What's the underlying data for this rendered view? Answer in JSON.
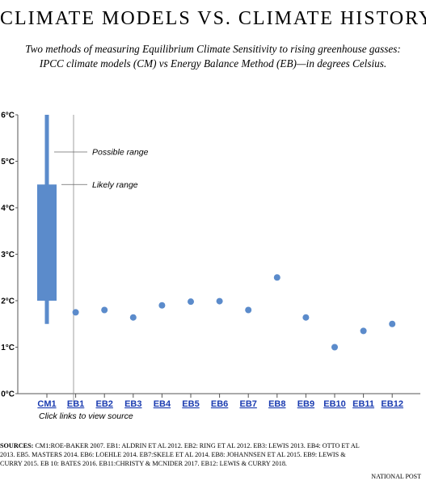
{
  "title": "CLIMATE MODELS VS. CLIMATE HISTORY",
  "subtitle_line1": "Two methods of measuring Equilibrium Climate Sensitivity to rising greenhouse gasses:",
  "subtitle_line2": "IPCC climate models (CM) vs Energy Balance Method (EB)—in degrees Celsius.",
  "note": "Click links to view source",
  "sources_label": "SOURCES:",
  "sources_line1": " CM1:ROE-BAKER 2007. EB1: ALDRIN ET AL 2012. EB2: RING ET AL 2012. EB3: LEWIS 2013. EB4: OTTO ET AL",
  "sources_line2": "2013. EB5. MASTERS 2014. EB6: LOEHLE 2014. EB7:SKELE ET AL 2014. EB8: JOHANNSEN ET AL 2015. EB9: LEWIS &",
  "sources_line3": "CURRY 2015. EB 10: BATES 2016. EB11:CHRISTY & MCNIDER 2017. EB12: LEWIS & CURRY 2018.",
  "credit": "NATIONAL POST",
  "colors": {
    "mark": "#5b8bcb",
    "link": "#1a3bb0",
    "axis": "#888888"
  },
  "chart_data": {
    "type": "scatter",
    "categories": [
      "CM1",
      "EB1",
      "EB2",
      "EB3",
      "EB4",
      "EB5",
      "EB6",
      "EB7",
      "EB8",
      "EB9",
      "EB10",
      "EB11",
      "EB12"
    ],
    "y_tick_labels": [
      "0°C",
      "1°C",
      "2°C",
      "3°C",
      "4°C",
      "5°C",
      "6°C"
    ],
    "ylim": [
      0,
      6
    ],
    "cm1_range": {
      "possible_low": 1.5,
      "possible_high": 6.0,
      "likely_low": 2.0,
      "likely_high": 4.5
    },
    "annotations": {
      "possible": "Possible range",
      "likely": "Likely range"
    },
    "series": [
      {
        "categories": [
          "EB1",
          "EB2",
          "EB3",
          "EB4",
          "EB5",
          "EB6",
          "EB7",
          "EB8",
          "EB9",
          "EB10",
          "EB11",
          "EB12"
        ],
        "values": [
          1.75,
          1.8,
          1.64,
          1.9,
          1.98,
          1.99,
          1.8,
          2.5,
          1.64,
          1.0,
          1.35,
          1.5
        ]
      }
    ],
    "grid": false
  }
}
